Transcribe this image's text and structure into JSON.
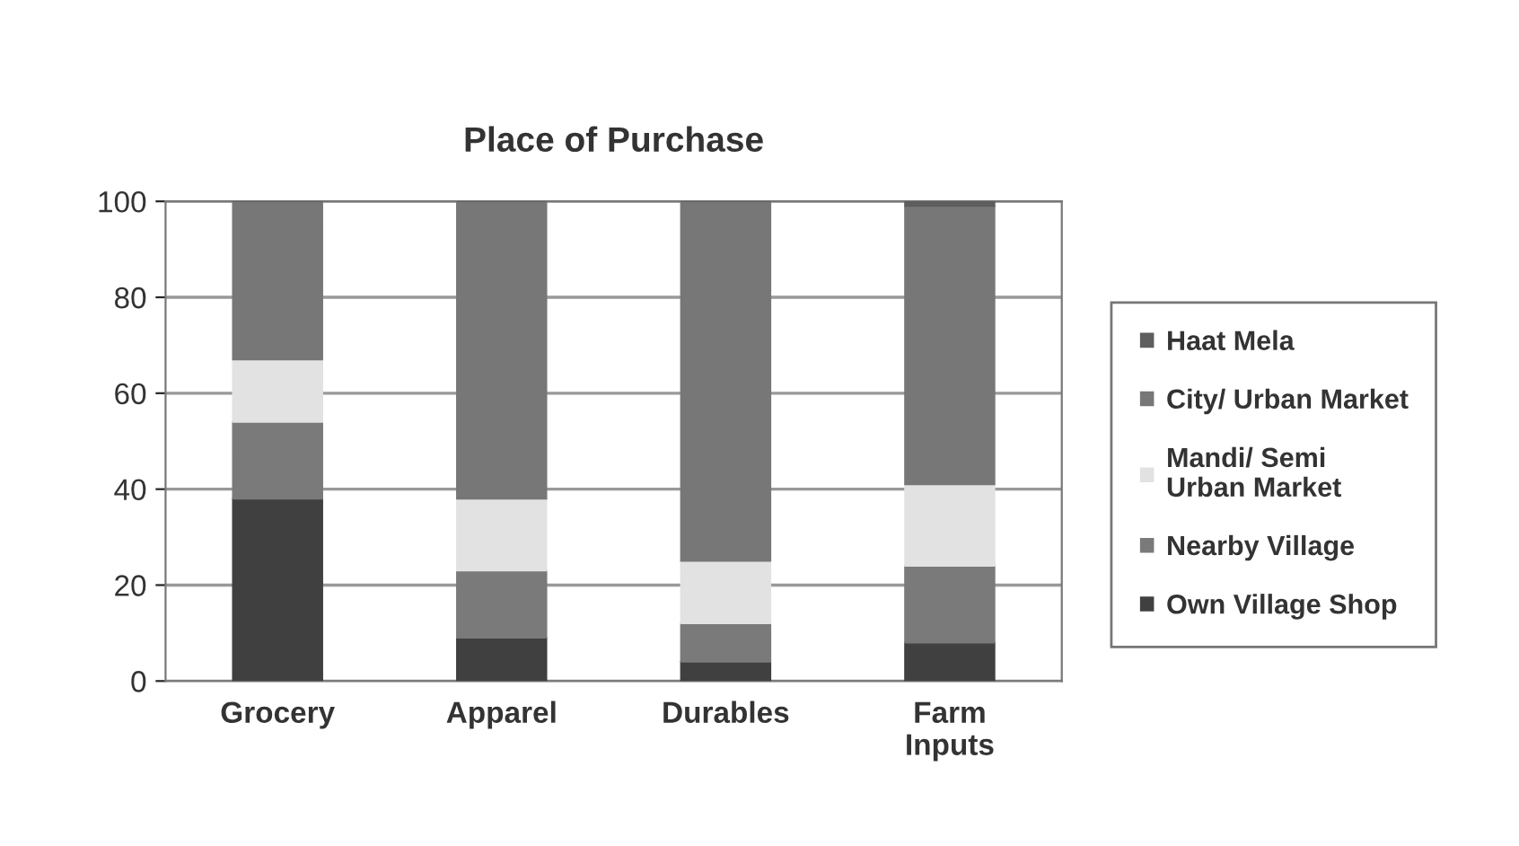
{
  "chart_data": {
    "type": "bar",
    "title": "Place of Purchase",
    "stacked": true,
    "categories": [
      "Grocery",
      "Apparel",
      "Durables",
      "Farm\nInputs"
    ],
    "series": [
      {
        "name": "Own Village Shop",
        "color": "#404040",
        "values": [
          38,
          9,
          4,
          8
        ]
      },
      {
        "name": "Nearby Village",
        "color": "#7a7a7a",
        "values": [
          16,
          14,
          8,
          16
        ]
      },
      {
        "name": "Mandi/ Semi\nUrban Market",
        "color": "#e2e2e2",
        "values": [
          13,
          15,
          13,
          17
        ]
      },
      {
        "name": "City/ Urban Market",
        "color": "#777777",
        "values": [
          33,
          62,
          75,
          58
        ]
      },
      {
        "name": "Haat Mela",
        "color": "#5e5e5e",
        "values": [
          0,
          0,
          0,
          1
        ]
      }
    ],
    "ylim": [
      0,
      100
    ],
    "yticks": [
      0,
      20,
      40,
      60,
      80,
      100
    ],
    "grid": "y",
    "legend": "right"
  }
}
